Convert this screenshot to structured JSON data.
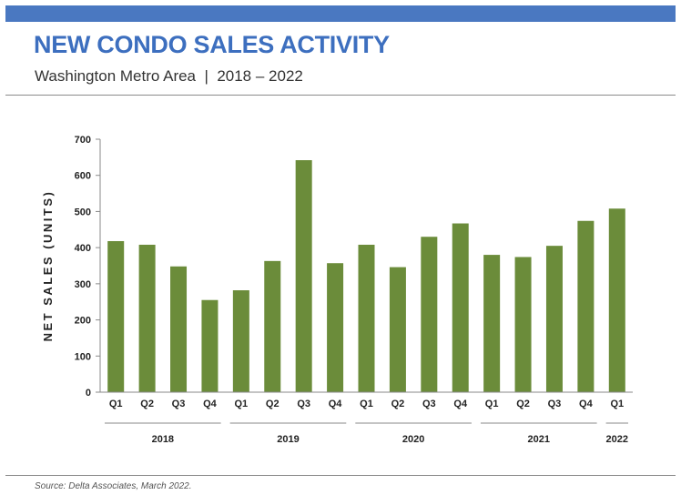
{
  "header": {
    "title": "NEW CONDO SALES ACTIVITY",
    "subtitle": "Washington Metro Area  |  2018 – 2022"
  },
  "footer": {
    "source": "Source: Delta Associates, March 2022."
  },
  "colors": {
    "banner": "#4a78c1",
    "title": "#3d6fbf",
    "bar": "#6b8c3a"
  },
  "chart_data": {
    "type": "bar",
    "title": "",
    "xlabel": "",
    "ylabel": "NET SALES (UNITS)",
    "ylim": [
      0,
      700
    ],
    "yticks": [
      0,
      100,
      200,
      300,
      400,
      500,
      600,
      700
    ],
    "grid": false,
    "legend": "none",
    "categories": [
      "Q1",
      "Q2",
      "Q3",
      "Q4",
      "Q1",
      "Q2",
      "Q3",
      "Q4",
      "Q1",
      "Q2",
      "Q3",
      "Q4",
      "Q1",
      "Q2",
      "Q3",
      "Q4",
      "Q1"
    ],
    "groups": [
      {
        "label": "2018",
        "count": 4
      },
      {
        "label": "2019",
        "count": 4
      },
      {
        "label": "2020",
        "count": 4
      },
      {
        "label": "2021",
        "count": 4
      },
      {
        "label": "2022",
        "count": 1
      }
    ],
    "series": [
      {
        "values": [
          418,
          408,
          348,
          255,
          282,
          363,
          642,
          357,
          408,
          346,
          430,
          467,
          380,
          374,
          405,
          474,
          508
        ]
      }
    ]
  }
}
